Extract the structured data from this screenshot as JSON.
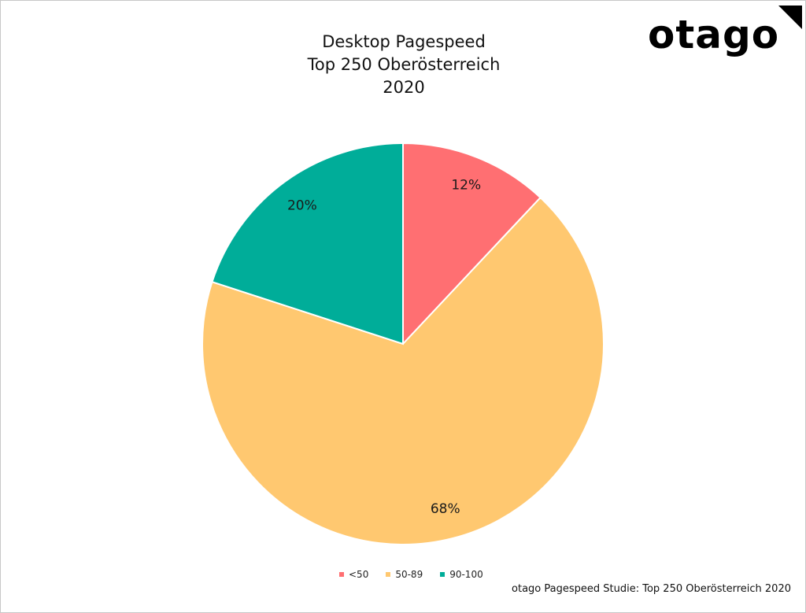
{
  "title_lines": [
    "Desktop Pagespeed",
    "Top 250 Oberösterreich",
    "2020"
  ],
  "logo": {
    "text": "otago",
    "color": "#000000"
  },
  "source_note": "otago Pagespeed Studie: Top 250 Oberösterreich 2020",
  "legend": [
    {
      "label": "<50",
      "color": "#ff6f72"
    },
    {
      "label": "50-89",
      "color": "#ffc870"
    },
    {
      "label": "90-100",
      "color": "#00ad99"
    }
  ],
  "chart_data": {
    "type": "pie",
    "title": "Desktop Pagespeed Top 250 Oberösterreich 2020",
    "start_angle": "12 o'clock",
    "direction": "clockwise",
    "categories": [
      "<50",
      "50-89",
      "90-100"
    ],
    "values": [
      12,
      68,
      20
    ],
    "labels": [
      "12%",
      "68%",
      "20%"
    ],
    "colors": [
      "#ff6f72",
      "#ffc870",
      "#00ad99"
    ],
    "legend_position": "bottom"
  }
}
